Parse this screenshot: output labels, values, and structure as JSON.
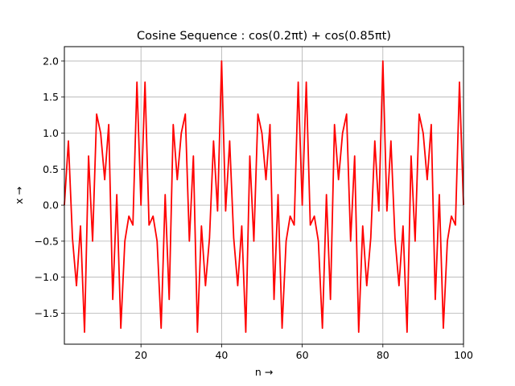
{
  "chart_data": {
    "type": "line",
    "title": "Cosine Sequence : cos(0.2πt) + cos(0.85πt)",
    "xlabel": "n →",
    "ylabel": "x →",
    "xlim": [
      1,
      100
    ],
    "ylim": [
      -1.93,
      2.2
    ],
    "grid": true,
    "x_ticks": [
      "20",
      "40",
      "60",
      "80",
      "100"
    ],
    "y_ticks": [
      "−1.5",
      "−1.0",
      "−0.5",
      "0.0",
      "0.5",
      "1.0",
      "1.5",
      "2.0"
    ],
    "x_tick_values": [
      20,
      40,
      60,
      80,
      100
    ],
    "y_tick_values": [
      -1.5,
      -1.0,
      -0.5,
      0.0,
      0.5,
      1.0,
      1.5,
      2.0
    ],
    "series": [
      {
        "color": "#ff0000",
        "x": [
          1,
          2,
          3,
          4,
          5,
          6,
          7,
          8,
          9,
          10,
          11,
          12,
          13,
          14,
          15,
          16,
          17,
          18,
          19,
          20,
          21,
          22,
          23,
          24,
          25,
          26,
          27,
          28,
          29,
          30,
          31,
          32,
          33,
          34,
          35,
          36,
          37,
          38,
          39,
          40,
          41,
          42,
          43,
          44,
          45,
          46,
          47,
          48,
          49,
          50,
          51,
          52,
          53,
          54,
          55,
          56,
          57,
          58,
          59,
          60,
          61,
          62,
          63,
          64,
          65,
          66,
          67,
          68,
          69,
          70,
          71,
          72,
          73,
          74,
          75,
          76,
          77,
          78,
          79,
          80,
          81,
          82,
          83,
          84,
          85,
          86,
          87,
          88,
          89,
          90,
          91,
          92,
          93,
          94,
          95,
          96,
          97,
          98,
          99,
          100
        ],
        "y": [
          0.0,
          0.891,
          -0.454,
          -1.118,
          -0.29,
          -1.763,
          0.681,
          -0.5,
          1.263,
          1.0,
          0.354,
          1.118,
          -1.309,
          0.146,
          -1.708,
          -0.5,
          -0.153,
          -0.276,
          1.707,
          0.0,
          1.707,
          -0.276,
          -0.153,
          -0.5,
          -1.708,
          0.146,
          -1.309,
          1.118,
          0.354,
          1.0,
          1.263,
          -0.5,
          0.681,
          -1.763,
          -0.29,
          -1.118,
          -0.454,
          0.891,
          -0.081,
          2.0,
          -0.081,
          0.891,
          -0.454,
          -1.118,
          -0.29,
          -1.763,
          0.681,
          -0.5,
          1.263,
          1.0,
          0.354,
          1.118,
          -1.309,
          0.146,
          -1.708,
          -0.5,
          -0.153,
          -0.276,
          1.707,
          0.0,
          1.707,
          -0.276,
          -0.153,
          -0.5,
          -1.708,
          0.146,
          -1.309,
          1.118,
          0.354,
          1.0,
          1.263,
          -0.5,
          0.681,
          -1.763,
          -0.29,
          -1.118,
          -0.454,
          0.891,
          -0.081,
          2.0,
          -0.081,
          0.891,
          -0.454,
          -1.118,
          -0.29,
          -1.763,
          0.681,
          -0.5,
          1.263,
          1.0,
          0.354,
          1.118,
          -1.309,
          0.146,
          -1.708,
          -0.5,
          -0.153,
          -0.276,
          1.707,
          0.0
        ]
      }
    ]
  }
}
